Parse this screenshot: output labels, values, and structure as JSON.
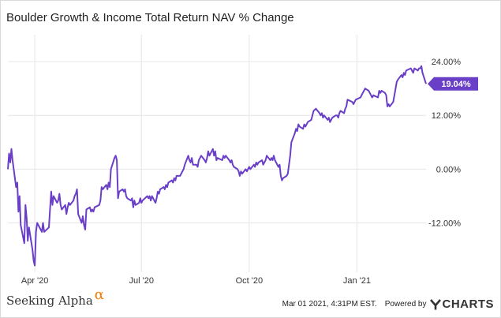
{
  "header": {
    "title": "Boulder Growth & Income Total Return NAV % Change"
  },
  "footer": {
    "brand": "Seeking Alpha",
    "brand_symbol": "α",
    "timestamp": "Mar 01 2021, 4:31PM EST.",
    "powered_by": "Powered by",
    "logo_text": "CHARTS"
  },
  "colors": {
    "line": "#6a3fc7",
    "grid": "#e6e6e6",
    "badge": "#6a3fc7",
    "brand_accent": "#f57c00"
  },
  "chart_data": {
    "type": "line",
    "title": "Boulder Growth & Income Total Return NAV % Change",
    "xlabel": "",
    "ylabel": "",
    "y_unit": "%",
    "ylim": [
      -23,
      30
    ],
    "xlim": [
      "2020-03-09",
      "2021-03-01"
    ],
    "x_ticks": [
      {
        "date": "2020-04-01",
        "label": "Apr '20"
      },
      {
        "date": "2020-07-01",
        "label": "Jul '20"
      },
      {
        "date": "2020-10-01",
        "label": "Oct '20"
      },
      {
        "date": "2021-01-01",
        "label": "Jan '21"
      }
    ],
    "y_ticks": [
      {
        "value": 24,
        "label": "24.00%"
      },
      {
        "value": 12,
        "label": "12.00%"
      },
      {
        "value": 0,
        "label": "0.00%"
      },
      {
        "value": -12,
        "label": "-12.00%"
      }
    ],
    "grid": true,
    "last_value_label": "19.04%",
    "series": [
      {
        "points": [
          [
            "2020-03-09",
            0.0
          ],
          [
            "2020-03-10",
            3.5
          ],
          [
            "2020-03-11",
            1.5
          ],
          [
            "2020-03-12",
            4.5
          ],
          [
            "2020-03-13",
            2.0
          ],
          [
            "2020-03-16",
            -4.0
          ],
          [
            "2020-03-17",
            -3.0
          ],
          [
            "2020-03-18",
            -9.5
          ],
          [
            "2020-03-19",
            -6.0
          ],
          [
            "2020-03-20",
            -12.5
          ],
          [
            "2020-03-23",
            -16.5
          ],
          [
            "2020-03-24",
            -8.0
          ],
          [
            "2020-03-25",
            -11.0
          ],
          [
            "2020-03-26",
            -16.0
          ],
          [
            "2020-03-27",
            -13.0
          ],
          [
            "2020-03-30",
            -18.0
          ],
          [
            "2020-03-31",
            -20.5
          ],
          [
            "2020-04-01",
            -21.5
          ],
          [
            "2020-04-02",
            -14.0
          ],
          [
            "2020-04-03",
            -12.0
          ],
          [
            "2020-04-06",
            -13.5
          ],
          [
            "2020-04-07",
            -14.0
          ],
          [
            "2020-04-08",
            -12.0
          ],
          [
            "2020-04-09",
            -14.0
          ],
          [
            "2020-04-13",
            -13.0
          ],
          [
            "2020-04-14",
            -9.0
          ],
          [
            "2020-04-15",
            -5.0
          ],
          [
            "2020-04-16",
            -8.0
          ],
          [
            "2020-04-17",
            -6.0
          ],
          [
            "2020-04-20",
            -7.5
          ],
          [
            "2020-04-21",
            -7.0
          ],
          [
            "2020-04-22",
            -5.5
          ],
          [
            "2020-04-23",
            -8.0
          ],
          [
            "2020-04-24",
            -9.0
          ],
          [
            "2020-04-27",
            -8.0
          ],
          [
            "2020-04-28",
            -10.0
          ],
          [
            "2020-04-29",
            -8.5
          ],
          [
            "2020-04-30",
            -7.5
          ],
          [
            "2020-05-01",
            -8.0
          ],
          [
            "2020-05-04",
            -7.0
          ],
          [
            "2020-05-05",
            -6.0
          ],
          [
            "2020-05-06",
            -5.5
          ],
          [
            "2020-05-07",
            -4.5
          ],
          [
            "2020-05-08",
            -10.0
          ],
          [
            "2020-05-11",
            -12.0
          ],
          [
            "2020-05-12",
            -10.5
          ],
          [
            "2020-05-13",
            -12.5
          ],
          [
            "2020-05-14",
            -13.5
          ],
          [
            "2020-05-15",
            -9.0
          ],
          [
            "2020-05-18",
            -8.5
          ],
          [
            "2020-05-19",
            -9.5
          ],
          [
            "2020-05-20",
            -9.0
          ],
          [
            "2020-05-21",
            -9.5
          ],
          [
            "2020-05-22",
            -8.5
          ],
          [
            "2020-05-26",
            -8.0
          ],
          [
            "2020-05-27",
            -7.0
          ],
          [
            "2020-05-28",
            -4.0
          ],
          [
            "2020-05-29",
            -4.5
          ],
          [
            "2020-06-01",
            -3.5
          ],
          [
            "2020-06-02",
            -4.5
          ],
          [
            "2020-06-03",
            -3.0
          ],
          [
            "2020-06-04",
            -4.0
          ],
          [
            "2020-06-05",
            0.0
          ],
          [
            "2020-06-08",
            2.5
          ],
          [
            "2020-06-09",
            3.0
          ],
          [
            "2020-06-10",
            2.0
          ],
          [
            "2020-06-11",
            -6.5
          ],
          [
            "2020-06-12",
            -5.0
          ],
          [
            "2020-06-15",
            -4.5
          ],
          [
            "2020-06-16",
            -5.0
          ],
          [
            "2020-06-17",
            -4.5
          ],
          [
            "2020-06-18",
            -6.0
          ],
          [
            "2020-06-19",
            -6.5
          ],
          [
            "2020-06-22",
            -7.0
          ],
          [
            "2020-06-23",
            -6.5
          ],
          [
            "2020-06-24",
            -8.5
          ],
          [
            "2020-06-25",
            -7.0
          ],
          [
            "2020-06-26",
            -8.0
          ],
          [
            "2020-06-29",
            -7.5
          ],
          [
            "2020-06-30",
            -6.5
          ],
          [
            "2020-07-01",
            -7.5
          ],
          [
            "2020-07-02",
            -7.0
          ],
          [
            "2020-07-06",
            -6.0
          ],
          [
            "2020-07-07",
            -6.5
          ],
          [
            "2020-07-08",
            -6.0
          ],
          [
            "2020-07-09",
            -7.0
          ],
          [
            "2020-07-10",
            -6.0
          ],
          [
            "2020-07-13",
            -7.5
          ],
          [
            "2020-07-14",
            -6.5
          ],
          [
            "2020-07-15",
            -5.0
          ],
          [
            "2020-07-16",
            -5.5
          ],
          [
            "2020-07-17",
            -4.5
          ],
          [
            "2020-07-20",
            -4.0
          ],
          [
            "2020-07-21",
            -4.5
          ],
          [
            "2020-07-22",
            -3.5
          ],
          [
            "2020-07-23",
            -4.0
          ],
          [
            "2020-07-24",
            -3.0
          ],
          [
            "2020-07-27",
            -2.5
          ],
          [
            "2020-07-28",
            -3.0
          ],
          [
            "2020-07-29",
            -2.0
          ],
          [
            "2020-07-30",
            -2.5
          ],
          [
            "2020-07-31",
            -1.5
          ],
          [
            "2020-08-03",
            -1.5
          ],
          [
            "2020-08-04",
            -1.0
          ],
          [
            "2020-08-05",
            -0.5
          ],
          [
            "2020-08-06",
            0.0
          ],
          [
            "2020-08-07",
            1.0
          ],
          [
            "2020-08-10",
            3.0
          ],
          [
            "2020-08-11",
            2.0
          ],
          [
            "2020-08-12",
            1.5
          ],
          [
            "2020-08-13",
            2.5
          ],
          [
            "2020-08-14",
            1.0
          ],
          [
            "2020-08-17",
            1.0
          ],
          [
            "2020-08-18",
            0.5
          ],
          [
            "2020-08-19",
            2.0
          ],
          [
            "2020-08-20",
            2.5
          ],
          [
            "2020-08-21",
            3.0
          ],
          [
            "2020-08-24",
            2.0
          ],
          [
            "2020-08-25",
            1.5
          ],
          [
            "2020-08-26",
            2.5
          ],
          [
            "2020-08-27",
            4.0
          ],
          [
            "2020-08-28",
            3.0
          ],
          [
            "2020-08-31",
            4.5
          ],
          [
            "2020-09-01",
            3.0
          ],
          [
            "2020-09-02",
            4.0
          ],
          [
            "2020-09-03",
            2.0
          ],
          [
            "2020-09-04",
            2.5
          ],
          [
            "2020-09-08",
            2.0
          ],
          [
            "2020-09-09",
            3.0
          ],
          [
            "2020-09-10",
            2.5
          ],
          [
            "2020-09-11",
            3.0
          ],
          [
            "2020-09-14",
            2.0
          ],
          [
            "2020-09-15",
            1.5
          ],
          [
            "2020-09-16",
            2.0
          ],
          [
            "2020-09-17",
            1.0
          ],
          [
            "2020-09-18",
            0.5
          ],
          [
            "2020-09-21",
            0.0
          ],
          [
            "2020-09-22",
            -0.5
          ],
          [
            "2020-09-23",
            -1.5
          ],
          [
            "2020-09-24",
            -0.5
          ],
          [
            "2020-09-25",
            -1.0
          ],
          [
            "2020-09-28",
            0.0
          ],
          [
            "2020-09-29",
            -0.5
          ],
          [
            "2020-09-30",
            0.0
          ],
          [
            "2020-10-01",
            0.5
          ],
          [
            "2020-10-02",
            0.0
          ],
          [
            "2020-10-05",
            1.0
          ],
          [
            "2020-10-06",
            0.5
          ],
          [
            "2020-10-07",
            1.5
          ],
          [
            "2020-10-08",
            1.0
          ],
          [
            "2020-10-09",
            1.5
          ],
          [
            "2020-10-12",
            2.0
          ],
          [
            "2020-10-13",
            1.0
          ],
          [
            "2020-10-14",
            1.5
          ],
          [
            "2020-10-15",
            2.0
          ],
          [
            "2020-10-16",
            3.0
          ],
          [
            "2020-10-19",
            2.0
          ],
          [
            "2020-10-20",
            2.5
          ],
          [
            "2020-10-21",
            2.0
          ],
          [
            "2020-10-22",
            3.0
          ],
          [
            "2020-10-23",
            2.0
          ],
          [
            "2020-10-26",
            0.5
          ],
          [
            "2020-10-27",
            1.0
          ],
          [
            "2020-10-28",
            -1.5
          ],
          [
            "2020-10-29",
            -2.5
          ],
          [
            "2020-10-30",
            -2.0
          ],
          [
            "2020-11-02",
            -1.5
          ],
          [
            "2020-11-03",
            -1.0
          ],
          [
            "2020-11-04",
            1.0
          ],
          [
            "2020-11-05",
            3.0
          ],
          [
            "2020-11-06",
            6.0
          ],
          [
            "2020-11-09",
            8.0
          ],
          [
            "2020-11-10",
            9.0
          ],
          [
            "2020-11-11",
            8.5
          ],
          [
            "2020-11-12",
            10.0
          ],
          [
            "2020-11-13",
            9.5
          ],
          [
            "2020-11-16",
            9.0
          ],
          [
            "2020-11-17",
            10.0
          ],
          [
            "2020-11-18",
            9.5
          ],
          [
            "2020-11-19",
            10.0
          ],
          [
            "2020-11-20",
            10.5
          ],
          [
            "2020-11-23",
            11.0
          ],
          [
            "2020-11-24",
            12.0
          ],
          [
            "2020-11-25",
            13.0
          ],
          [
            "2020-11-27",
            13.5
          ],
          [
            "2020-11-30",
            12.5
          ],
          [
            "2020-12-01",
            12.0
          ],
          [
            "2020-12-02",
            12.5
          ],
          [
            "2020-12-03",
            11.5
          ],
          [
            "2020-12-04",
            12.0
          ],
          [
            "2020-12-07",
            11.0
          ],
          [
            "2020-12-08",
            11.5
          ],
          [
            "2020-12-09",
            10.5
          ],
          [
            "2020-12-10",
            11.0
          ],
          [
            "2020-12-11",
            11.5
          ],
          [
            "2020-12-14",
            12.0
          ],
          [
            "2020-12-15",
            12.0
          ],
          [
            "2020-12-16",
            11.5
          ],
          [
            "2020-12-17",
            12.5
          ],
          [
            "2020-12-18",
            13.0
          ],
          [
            "2020-12-21",
            12.5
          ],
          [
            "2020-12-22",
            13.5
          ],
          [
            "2020-12-23",
            14.0
          ],
          [
            "2020-12-24",
            15.5
          ],
          [
            "2020-12-28",
            15.0
          ],
          [
            "2020-12-29",
            14.5
          ],
          [
            "2020-12-30",
            15.0
          ],
          [
            "2020-12-31",
            15.5
          ],
          [
            "2021-01-04",
            16.0
          ],
          [
            "2021-01-05",
            16.5
          ],
          [
            "2021-01-06",
            17.0
          ],
          [
            "2021-01-07",
            17.5
          ],
          [
            "2021-01-08",
            18.0
          ],
          [
            "2021-01-11",
            17.5
          ],
          [
            "2021-01-12",
            17.0
          ],
          [
            "2021-01-13",
            16.5
          ],
          [
            "2021-01-14",
            16.0
          ],
          [
            "2021-01-15",
            16.5
          ],
          [
            "2021-01-19",
            16.0
          ],
          [
            "2021-01-20",
            17.5
          ],
          [
            "2021-01-21",
            17.0
          ],
          [
            "2021-01-22",
            17.5
          ],
          [
            "2021-01-25",
            17.0
          ],
          [
            "2021-01-26",
            16.5
          ],
          [
            "2021-01-27",
            14.0
          ],
          [
            "2021-01-28",
            14.5
          ],
          [
            "2021-01-29",
            14.0
          ],
          [
            "2021-02-01",
            15.0
          ],
          [
            "2021-02-02",
            16.5
          ],
          [
            "2021-02-03",
            18.0
          ],
          [
            "2021-02-04",
            19.5
          ],
          [
            "2021-02-05",
            20.0
          ],
          [
            "2021-02-08",
            21.0
          ],
          [
            "2021-02-09",
            20.5
          ],
          [
            "2021-02-10",
            21.5
          ],
          [
            "2021-02-11",
            21.0
          ],
          [
            "2021-02-12",
            22.0
          ],
          [
            "2021-02-16",
            22.5
          ],
          [
            "2021-02-17",
            22.0
          ],
          [
            "2021-02-18",
            21.5
          ],
          [
            "2021-02-19",
            22.5
          ],
          [
            "2021-02-22",
            22.0
          ],
          [
            "2021-02-23",
            22.5
          ],
          [
            "2021-02-24",
            22.5
          ],
          [
            "2021-02-25",
            23.0
          ],
          [
            "2021-02-26",
            21.5
          ],
          [
            "2021-03-01",
            19.04
          ]
        ]
      }
    ]
  }
}
